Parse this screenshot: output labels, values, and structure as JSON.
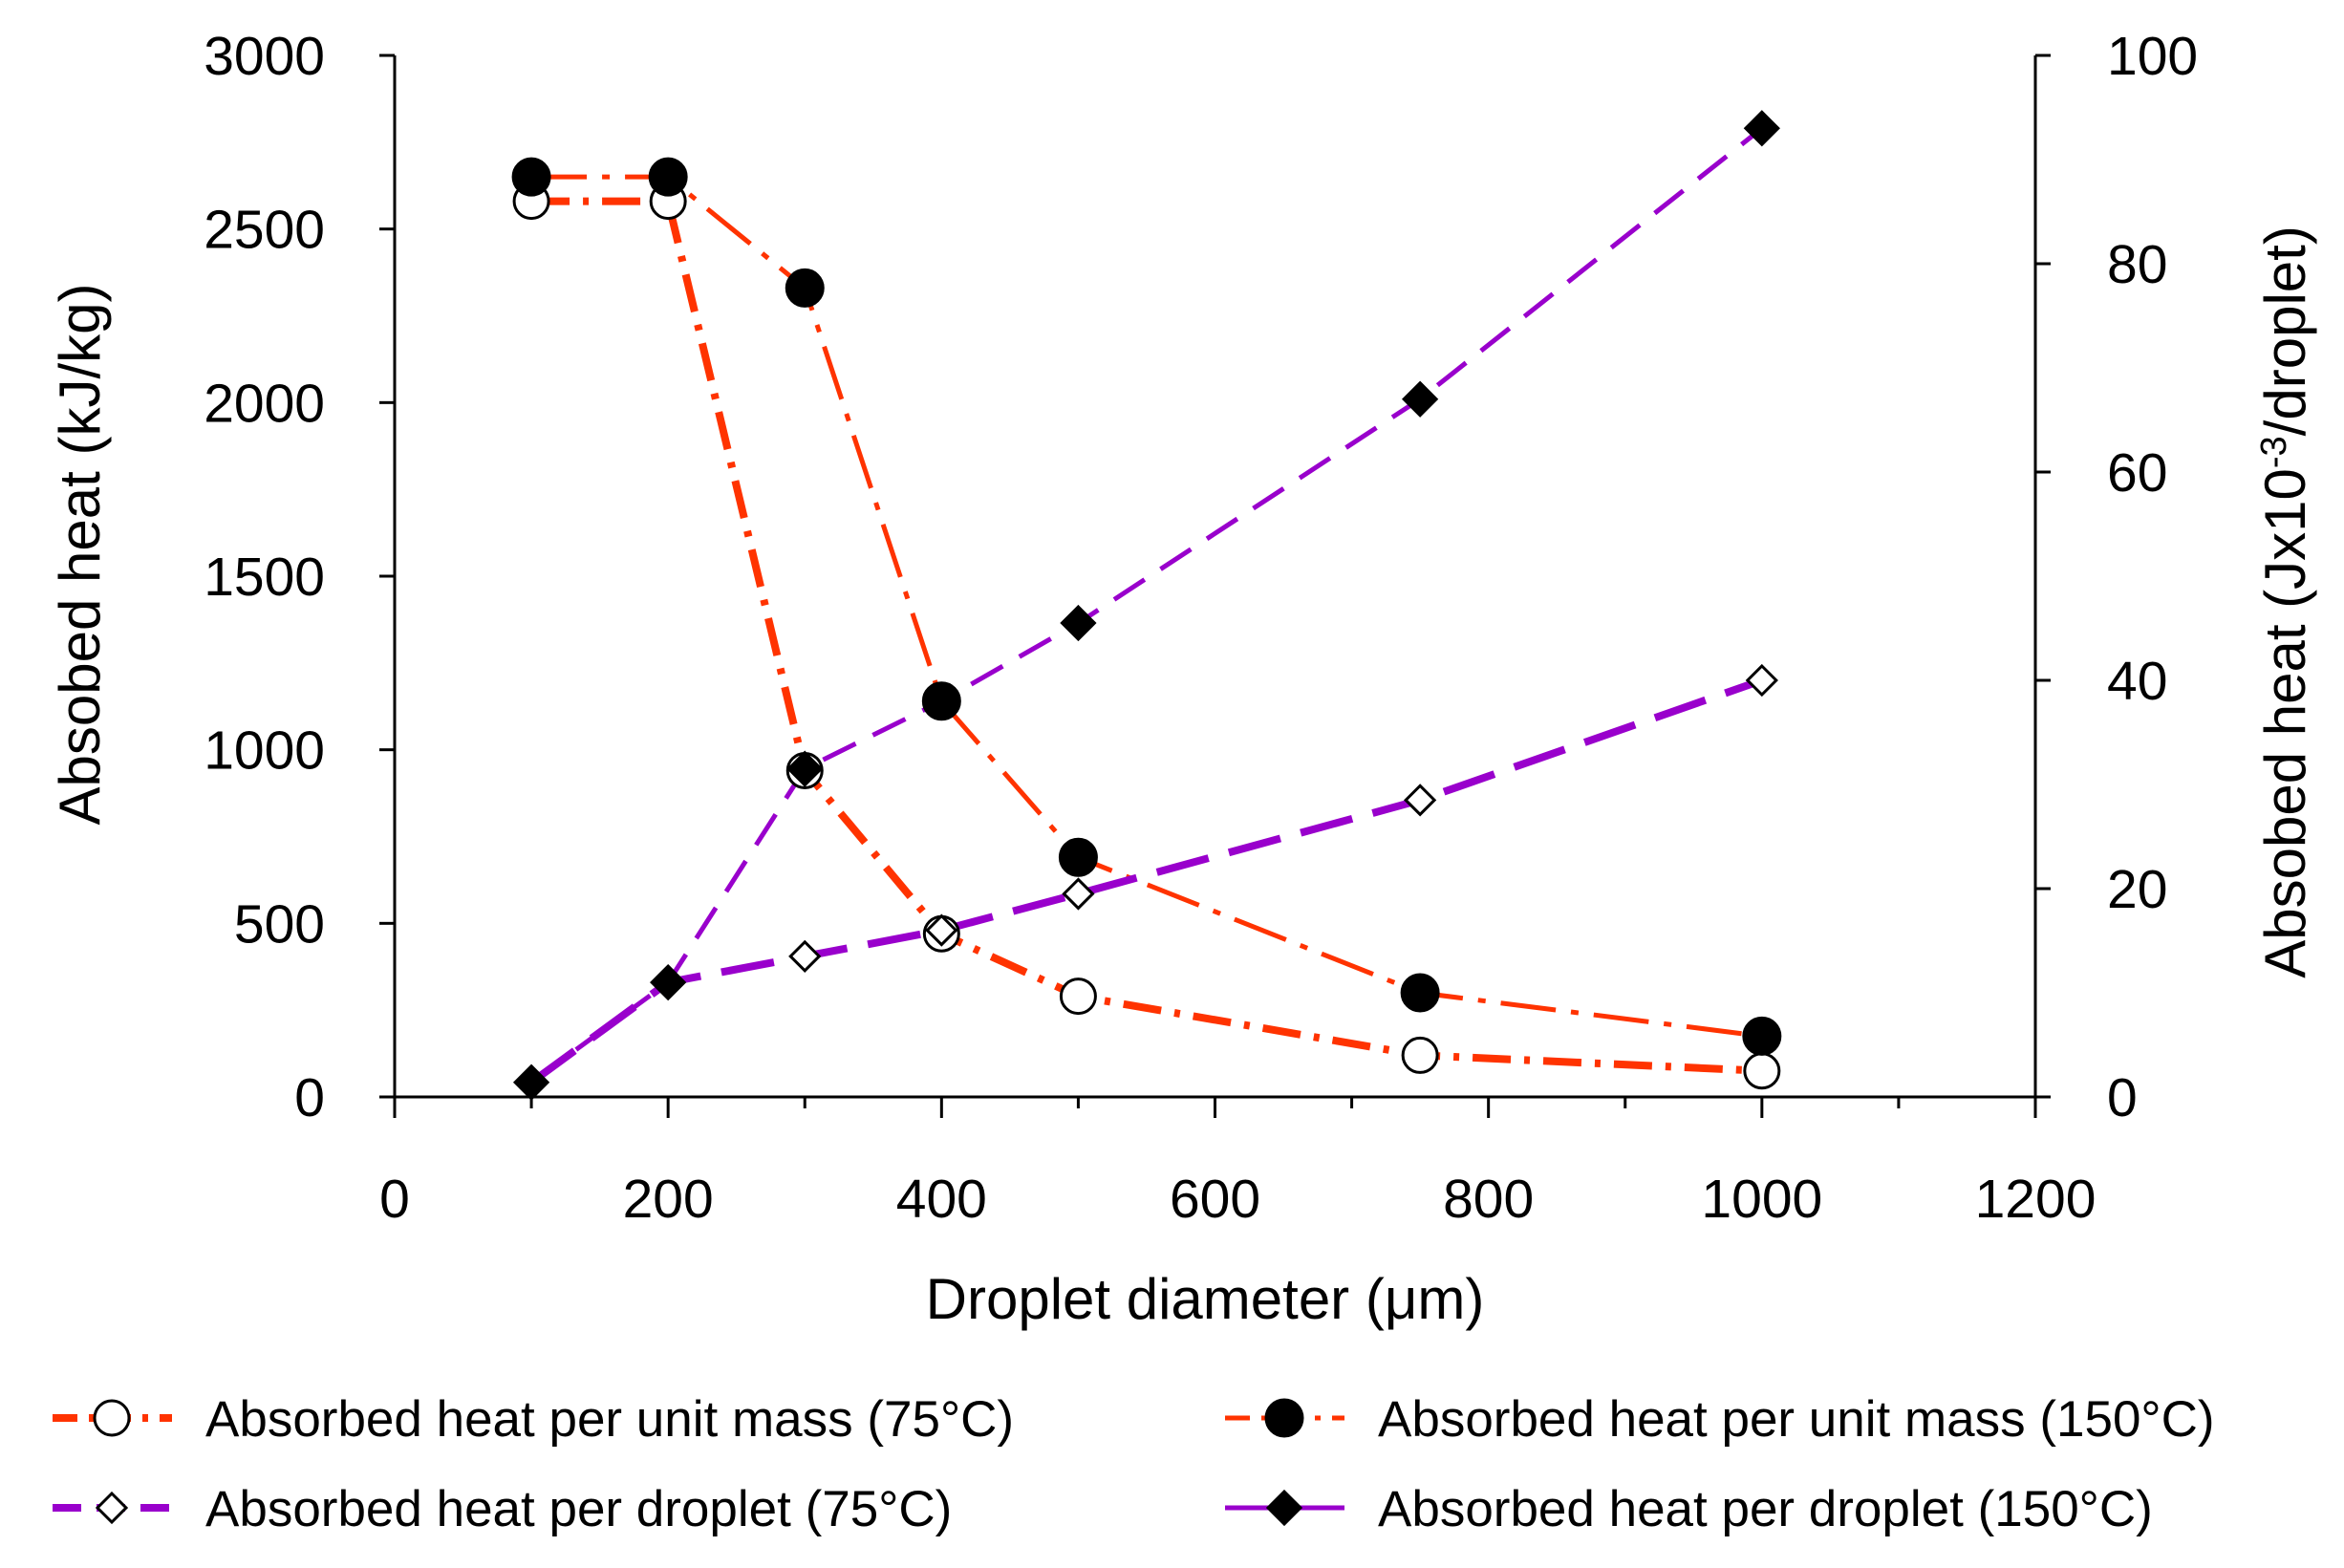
{
  "chart_data": {
    "type": "line",
    "title": "",
    "xlabel": "Droplet diameter (μm)",
    "ylabel": "Absobed heat (kJ/kg)",
    "y2label_prefix": "Absobed heat (Jx10",
    "y2label_sup": "-3",
    "y2label_suffix": "/droplet)",
    "xlim": [
      0,
      1200
    ],
    "ylim": [
      0,
      3000
    ],
    "y2lim": [
      0,
      100
    ],
    "x_ticks": [
      0,
      200,
      400,
      600,
      800,
      1000,
      1200
    ],
    "y_ticks": [
      0,
      500,
      1000,
      1500,
      2000,
      2500,
      3000
    ],
    "y2_ticks": [
      0,
      20,
      40,
      60,
      80,
      100
    ],
    "legend_position": "bottom",
    "series": [
      {
        "name": "Absorbed heat per unit mass (75°C)",
        "axis": "left",
        "color": "#ff3300",
        "marker": "circle-open",
        "line_style": "dash-dot",
        "x": [
          100,
          200,
          300,
          400,
          500,
          750,
          1000
        ],
        "values": [
          2580,
          2580,
          940,
          470,
          290,
          120,
          75
        ]
      },
      {
        "name": "Absorbed heat per unit mass (150°C)",
        "axis": "left",
        "color": "#ff3300",
        "marker": "circle-filled",
        "line_style": "long-dash-dot",
        "x": [
          100,
          200,
          300,
          400,
          500,
          750,
          1000
        ],
        "values": [
          2650,
          2650,
          2330,
          1140,
          690,
          300,
          175
        ]
      },
      {
        "name": "Absorbed heat per droplet (75°C)",
        "axis": "right",
        "color": "#9900cc",
        "marker": "diamond-open",
        "line_style": "long-dash",
        "x": [
          100,
          200,
          300,
          400,
          500,
          750,
          1000
        ],
        "values": [
          1.4,
          11,
          13.5,
          16,
          19.5,
          28.5,
          40
        ]
      },
      {
        "name": "Absorbed heat per droplet (150°C)",
        "axis": "right",
        "color": "#9900cc",
        "marker": "diamond-filled",
        "line_style": "dash",
        "x": [
          100,
          200,
          300,
          400,
          500,
          750,
          1000
        ],
        "values": [
          1.4,
          11,
          31.5,
          38,
          45.5,
          67,
          93
        ]
      }
    ]
  }
}
